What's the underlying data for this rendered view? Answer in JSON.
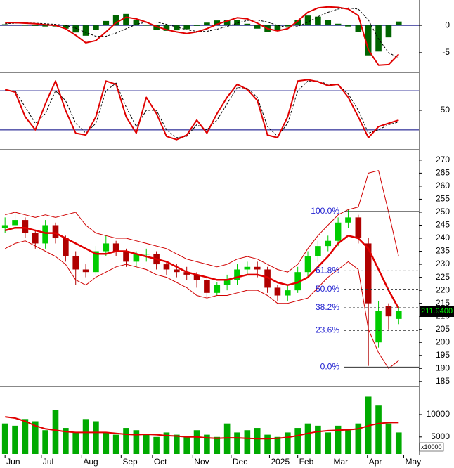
{
  "chart_data": [
    {
      "type": "line",
      "xlim": [
        -0.5,
        41
      ],
      "ylim": [
        -8.5,
        4.4
      ],
      "yticks": [
        0,
        -5
      ],
      "levels": [
        0
      ],
      "level_color": "#000080",
      "series": [
        {
          "kind": "bar",
          "color": "#006400",
          "values": [
            0.2,
            0.1,
            -0.05,
            -0.1,
            -0.2,
            -0.2,
            -0.6,
            -1.3,
            -1.9,
            -0.8,
            0.8,
            1.9,
            2.1,
            1.0,
            0.0,
            -0.8,
            -1.0,
            -0.9,
            -0.7,
            -0.1,
            0.5,
            0.9,
            1.0,
            1.0,
            0.3,
            -0.6,
            -1.2,
            -1.0,
            -0.2,
            1.0,
            1.8,
            1.6,
            1.0,
            0.3,
            -0.2,
            -1.2,
            -5.5,
            -4.8,
            -2.2,
            0.7
          ]
        },
        {
          "kind": "line",
          "color": "#000000",
          "dashed": true,
          "values": [
            0.3,
            0.4,
            0.45,
            0.4,
            0.3,
            0.2,
            0.0,
            -0.5,
            -1.3,
            -2.0,
            -2.0,
            -1.4,
            -0.6,
            0.2,
            0.6,
            0.6,
            0.2,
            -0.3,
            -0.8,
            -1.1,
            -1.1,
            -0.7,
            -0.2,
            0.4,
            0.9,
            1.0,
            0.6,
            0.0,
            -0.4,
            -0.2,
            0.6,
            1.6,
            2.4,
            3.0,
            3.2,
            3.0,
            1.0,
            -2.5,
            -5.0,
            -6.0
          ]
        },
        {
          "kind": "line",
          "color": "#e00000",
          "width": 2,
          "values": [
            0.5,
            0.5,
            0.4,
            0.3,
            0.1,
            0.0,
            -0.6,
            -1.8,
            -3.2,
            -2.8,
            -1.2,
            0.5,
            1.5,
            1.2,
            0.6,
            -0.2,
            -0.8,
            -1.2,
            -1.5,
            -1.2,
            -0.6,
            0.2,
            0.8,
            1.4,
            1.2,
            0.4,
            -0.6,
            -1.0,
            -0.6,
            0.8,
            2.4,
            3.2,
            3.4,
            3.3,
            3.0,
            1.8,
            -4.5,
            -7.3,
            -7.2,
            -5.3
          ]
        }
      ]
    },
    {
      "type": "line",
      "xlim": [
        -0.5,
        41
      ],
      "ylim": [
        -5,
        105
      ],
      "yticks": [
        50
      ],
      "levels": [
        80,
        20
      ],
      "level_color": "#000080",
      "series": [
        {
          "kind": "line",
          "color": "#000000",
          "dashed": true,
          "values": [
            80,
            80,
            55,
            30,
            45,
            80,
            65,
            30,
            15,
            30,
            80,
            92,
            55,
            25,
            50,
            50,
            20,
            8,
            10,
            28,
            20,
            35,
            60,
            85,
            84,
            70,
            25,
            10,
            30,
            80,
            95,
            95,
            90,
            89,
            75,
            50,
            15,
            20,
            28,
            32
          ]
        },
        {
          "kind": "line",
          "color": "#e00000",
          "width": 2,
          "values": [
            82,
            78,
            40,
            20,
            60,
            95,
            50,
            15,
            12,
            40,
            95,
            90,
            40,
            15,
            70,
            45,
            10,
            5,
            12,
            35,
            15,
            45,
            70,
            90,
            82,
            65,
            12,
            8,
            40,
            95,
            97,
            94,
            88,
            90,
            70,
            40,
            8,
            25,
            30,
            35
          ]
        }
      ]
    },
    {
      "type": "candlestick",
      "xlim": [
        -0.5,
        41
      ],
      "ylim": [
        183.6,
        273.2
      ],
      "yticks": [
        185,
        190,
        195,
        200,
        205,
        210,
        215,
        220,
        225,
        230,
        235,
        240,
        245,
        250,
        255,
        260,
        265,
        270
      ],
      "up_color": "#00cc00",
      "down_color": "#b00000",
      "open": [
        244,
        245,
        247,
        242,
        238,
        245,
        240,
        233,
        228,
        227,
        235,
        238,
        235,
        231,
        234,
        234,
        230,
        228,
        227,
        226,
        224,
        219,
        222,
        224,
        228,
        229,
        228,
        221,
        218,
        220,
        227,
        233,
        237,
        239,
        246,
        248,
        238,
        200,
        214,
        209
      ],
      "high": [
        248,
        250,
        248,
        243,
        247,
        246,
        241,
        235,
        230,
        237,
        241,
        239,
        236,
        235,
        236,
        235,
        231,
        230,
        229,
        227,
        225,
        223,
        226,
        230,
        231,
        231,
        229,
        222,
        222,
        229,
        235,
        239,
        241,
        248,
        251,
        249,
        240,
        216,
        215,
        214
      ],
      "low": [
        242,
        243,
        240,
        236,
        236,
        238,
        231,
        222,
        225,
        226,
        233,
        233,
        229,
        229,
        231,
        228,
        226,
        225,
        224,
        221,
        217,
        218,
        220,
        222,
        226,
        225,
        219,
        216,
        216,
        219,
        225,
        231,
        235,
        237,
        244,
        238,
        191,
        198,
        205,
        207
      ],
      "close": [
        245,
        247,
        242,
        238,
        245,
        240,
        233,
        228,
        227,
        235,
        238,
        235,
        231,
        234,
        234,
        230,
        228,
        227,
        226,
        224,
        219,
        222,
        224,
        228,
        229,
        228,
        221,
        218,
        220,
        227,
        233,
        237,
        239,
        246,
        248,
        240,
        215,
        212,
        210,
        211.94
      ],
      "last_label": "211.9400",
      "series": [
        {
          "kind": "line",
          "color": "#d00000",
          "width": 1,
          "values": [
            249,
            250,
            249,
            248,
            249,
            248,
            249,
            250,
            245,
            242,
            241,
            240,
            240,
            239,
            238,
            237,
            236,
            234,
            232,
            231,
            230,
            229,
            230,
            232,
            233,
            232,
            230,
            228,
            227,
            230,
            236,
            241,
            245,
            249,
            251,
            252,
            265,
            266,
            250,
            233
          ]
        },
        {
          "kind": "line",
          "color": "#d00000",
          "width": 1,
          "values": [
            236,
            238,
            239,
            237,
            235,
            233,
            230,
            224,
            222,
            225,
            227,
            229,
            230,
            229,
            228,
            226,
            225,
            223,
            221,
            218,
            217,
            218,
            218,
            219,
            220,
            220,
            218,
            215,
            215,
            216,
            217,
            221,
            225,
            228,
            231,
            228,
            205,
            196,
            190,
            193
          ]
        },
        {
          "kind": "line",
          "color": "#e00000",
          "width": 2.5,
          "values": [
            243,
            244,
            244,
            243,
            242,
            242,
            240,
            238,
            236,
            234,
            234,
            235,
            235,
            234,
            233,
            232,
            231,
            229,
            227,
            226,
            225,
            224,
            224,
            225,
            226,
            226,
            225,
            223,
            222,
            223,
            225,
            229,
            233,
            238,
            241,
            240,
            236,
            228,
            220,
            213
          ]
        }
      ],
      "fibonacci": [
        {
          "label": "100.0%",
          "value": 250.3
        },
        {
          "label": "61.8%",
          "value": 227.5
        },
        {
          "label": "50.0%",
          "value": 220.4
        },
        {
          "label": "38.2%",
          "value": 213.3
        },
        {
          "label": "23.6%",
          "value": 204.6
        },
        {
          "label": "0.0%",
          "value": 190.5
        }
      ]
    },
    {
      "type": "bar",
      "xlim": [
        -0.5,
        41
      ],
      "ylim": [
        1200,
        15800
      ],
      "yticks": [
        5000,
        10000
      ],
      "unit_label": "x10000",
      "xticks": [
        {
          "value": 0,
          "label": "Jun"
        },
        {
          "value": 3.6,
          "label": "Jul"
        },
        {
          "value": 7.6,
          "label": "Aug"
        },
        {
          "value": 11.5,
          "label": "Sep"
        },
        {
          "value": 14.6,
          "label": "Oct"
        },
        {
          "value": 18.6,
          "label": "Nov"
        },
        {
          "value": 22.4,
          "label": "Dec"
        },
        {
          "value": 26.2,
          "label": "2025"
        },
        {
          "value": 29.0,
          "label": "Feb"
        },
        {
          "value": 32.4,
          "label": "Mar"
        },
        {
          "value": 35.9,
          "label": "Apr"
        },
        {
          "value": 39.5,
          "label": "May"
        }
      ],
      "series": [
        {
          "kind": "bar",
          "color": "#00aa00",
          "values": [
            8000,
            7500,
            9000,
            8500,
            6500,
            11000,
            7000,
            6000,
            9000,
            8500,
            6000,
            5500,
            7000,
            6500,
            5500,
            5000,
            6000,
            5500,
            5000,
            6500,
            5500,
            5000,
            8000,
            6000,
            6500,
            7000,
            5500,
            5000,
            6000,
            7000,
            8000,
            7500,
            6000,
            7500,
            6500,
            8000,
            14000,
            12000,
            8000,
            6000
          ]
        },
        {
          "kind": "line",
          "color": "#e00000",
          "width": 2,
          "values": [
            9500,
            9200,
            8500,
            7500,
            6800,
            6500,
            6200,
            6000,
            6000,
            6000,
            6000,
            5800,
            5600,
            5500,
            5600,
            5500,
            5300,
            5200,
            5000,
            5000,
            4800,
            4700,
            4800,
            4800,
            4700,
            4600,
            4600,
            4700,
            4900,
            5300,
            5800,
            6200,
            6400,
            6500,
            6600,
            6800,
            7500,
            8000,
            8200,
            8200
          ]
        }
      ]
    }
  ]
}
